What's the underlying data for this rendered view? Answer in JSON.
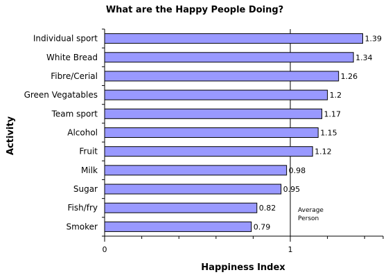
{
  "chart_data": {
    "type": "bar",
    "orientation": "horizontal",
    "title": "What are the Happy People Doing?",
    "xlabel": "Happiness Index",
    "ylabel": "Activity",
    "categories": [
      "Individual sport",
      "White Bread",
      "Fibre/Cerial",
      "Green Vegatables",
      "Team sport",
      "Alcohol",
      "Fruit",
      "Milk",
      "Sugar",
      "Fish/fry",
      "Smoker"
    ],
    "values": [
      1.39,
      1.34,
      1.26,
      1.2,
      1.17,
      1.15,
      1.12,
      0.98,
      0.95,
      0.82,
      0.79
    ],
    "value_labels": [
      "1.39",
      "1.34",
      "1.26",
      "1.2",
      "1.17",
      "1.15",
      "1.12",
      "0.98",
      "0.95",
      "0.82",
      "0.79"
    ],
    "xlim": [
      0,
      1.5
    ],
    "x_ticks": [
      0,
      1
    ],
    "x_tick_labels": [
      "0",
      "1"
    ],
    "reference_line": {
      "value": 1,
      "label_lines": [
        "Average",
        "Person"
      ]
    },
    "bar_color": "#9999ff",
    "bar_stroke": "#000000",
    "grid": false,
    "legend": "none"
  }
}
